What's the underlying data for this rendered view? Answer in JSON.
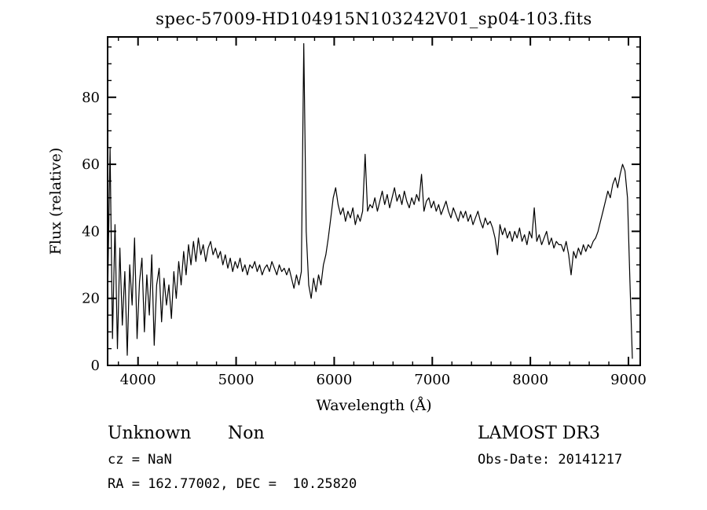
{
  "title": "spec-57009-HD104915N103242V01_sp04-103.fits",
  "annotations": {
    "class": "Unknown",
    "subclass": "Non",
    "survey": "LAMOST DR3",
    "cz": "cz = NaN",
    "obs_date": "Obs-Date: 20141217",
    "ra_dec": "RA = 162.77002, DEC =  10.25820"
  },
  "chart_data": {
    "type": "line",
    "title": "spec-57009-HD104915N103242V01_sp04-103.fits",
    "xlabel": "Wavelength (Å)",
    "ylabel": "Flux (relative)",
    "xlim": [
      3690,
      9120
    ],
    "ylim": [
      0,
      98
    ],
    "x_ticks": [
      4000,
      5000,
      6000,
      7000,
      8000,
      9000
    ],
    "y_ticks": [
      0,
      20,
      40,
      60,
      80
    ],
    "x_minor_step": 200,
    "y_minor_step": 5,
    "grid": false,
    "legend": false,
    "line_color": "#000000",
    "wavelength_start": 3690,
    "wavelength_step": 25,
    "flux": [
      20,
      65,
      8,
      42,
      5,
      35,
      12,
      28,
      3,
      30,
      18,
      38,
      8,
      25,
      32,
      10,
      27,
      15,
      33,
      6,
      24,
      29,
      13,
      26,
      18,
      24,
      14,
      28,
      20,
      31,
      24,
      34,
      27,
      36,
      30,
      37,
      31,
      38,
      33,
      36,
      31,
      35,
      37,
      33,
      35,
      32,
      34,
      30,
      33,
      29,
      32,
      28,
      31,
      29,
      32,
      28,
      30,
      27,
      30,
      29,
      31,
      28,
      30,
      27,
      29,
      30,
      28,
      31,
      29,
      27,
      30,
      28,
      29,
      27,
      29,
      26,
      23,
      27,
      24,
      28,
      96,
      40,
      24,
      20,
      26,
      22,
      27,
      24,
      30,
      33,
      38,
      44,
      50,
      53,
      48,
      45,
      47,
      43,
      46,
      44,
      47,
      42,
      45,
      43,
      46,
      63,
      46,
      48,
      47,
      50,
      46,
      49,
      52,
      48,
      51,
      47,
      50,
      53,
      49,
      51,
      48,
      52,
      49,
      47,
      50,
      48,
      51,
      49,
      57,
      46,
      49,
      50,
      47,
      49,
      46,
      48,
      45,
      47,
      49,
      46,
      44,
      47,
      45,
      43,
      46,
      44,
      46,
      43,
      45,
      42,
      44,
      46,
      43,
      41,
      44,
      42,
      43,
      41,
      38,
      33,
      42,
      39,
      41,
      38,
      40,
      37,
      40,
      38,
      41,
      37,
      39,
      36,
      40,
      38,
      47,
      37,
      39,
      36,
      38,
      40,
      36,
      38,
      35,
      37,
      36,
      36,
      34,
      37,
      33,
      27,
      34,
      32,
      35,
      33,
      36,
      34,
      36,
      35,
      37,
      38,
      40,
      43,
      46,
      49,
      52,
      50,
      54,
      56,
      53,
      57,
      60,
      58,
      50,
      25,
      2
    ]
  }
}
